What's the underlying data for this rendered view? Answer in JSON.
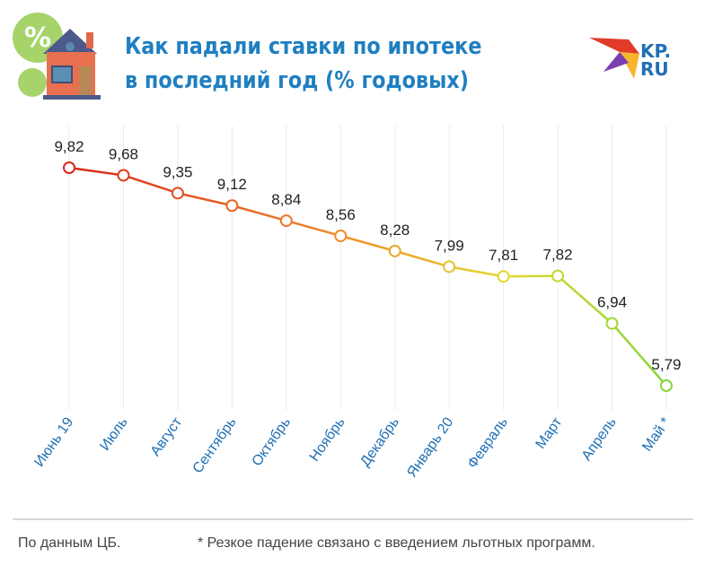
{
  "header": {
    "title_line1": "Как падали ставки по ипотеке",
    "title_line2": "в последний год (% годовых)",
    "logo_text": "KP.RU",
    "illustration_badge": "%"
  },
  "chart_data": {
    "type": "line",
    "title": "Как падали ставки по ипотеке в последний год (% годовых)",
    "categories": [
      "Июнь 19",
      "Июль",
      "Август",
      "Сентябрь",
      "Октябрь",
      "Ноябрь",
      "Декабрь",
      "Январь 20",
      "Февраль",
      "Март",
      "Апрель",
      "Май *"
    ],
    "values": [
      9.82,
      9.68,
      9.35,
      9.12,
      8.84,
      8.56,
      8.28,
      7.99,
      7.81,
      7.82,
      6.94,
      5.79
    ],
    "labels": [
      "9,82",
      "9,68",
      "9,35",
      "9,12",
      "8,84",
      "8,56",
      "8,28",
      "7,99",
      "7,81",
      "7,82",
      "6,94",
      "5,79"
    ],
    "xlabel": "",
    "ylabel": "% годовых",
    "grid": "vertical",
    "colors": {
      "start": "#d9261c",
      "mid": "#f08a2a",
      "yellow": "#e6d82e",
      "end": "#86d63a",
      "axis_label": "#1f6fb5",
      "grid": "#e8eaec"
    }
  },
  "footer": {
    "source": "По данным ЦБ.",
    "note": "* Резкое падение связано с введением льготных программ."
  }
}
